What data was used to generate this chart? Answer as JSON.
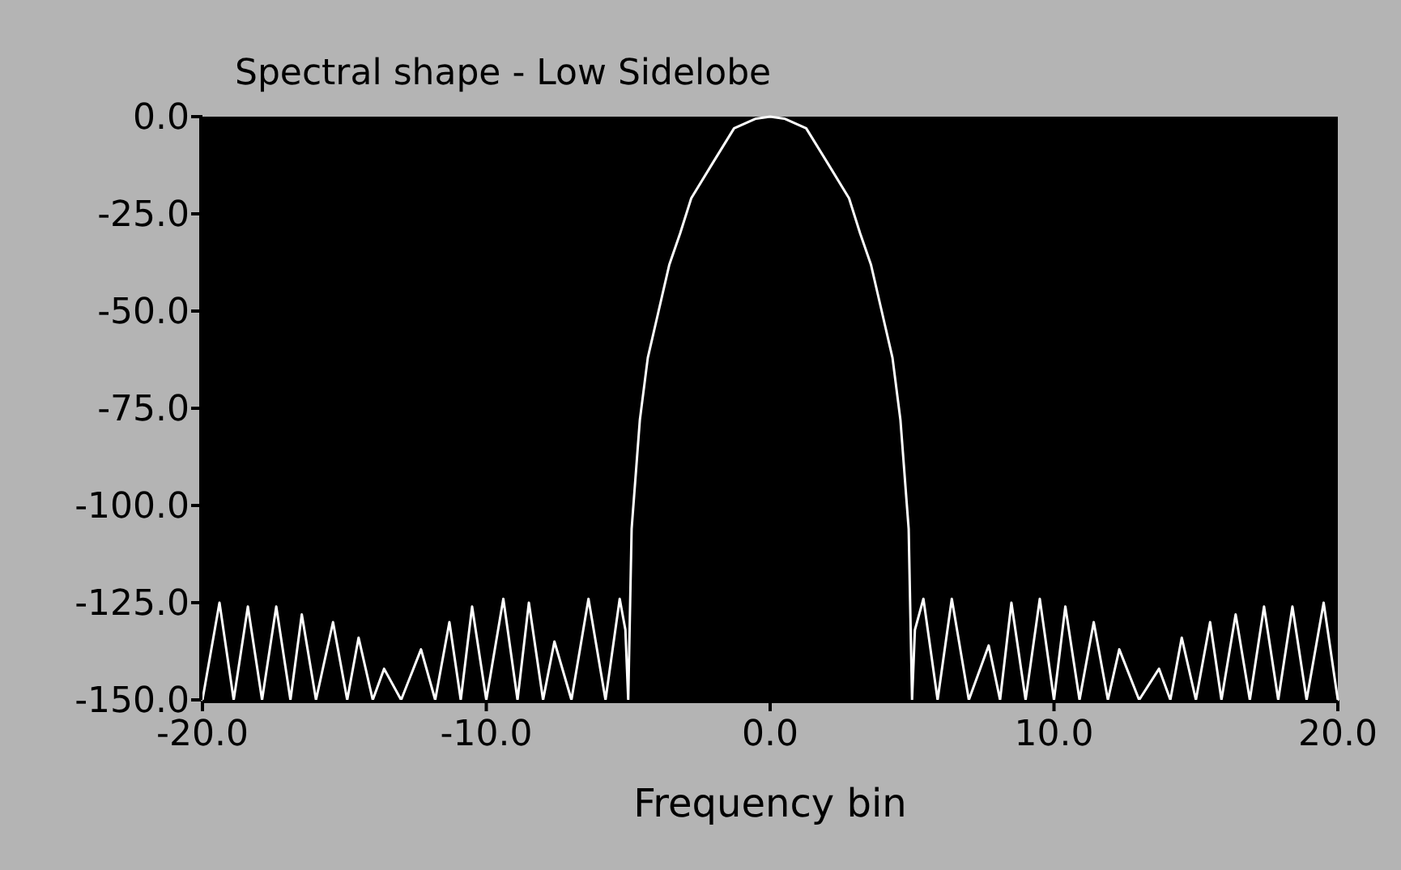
{
  "chart_data": {
    "type": "line",
    "title": "Spectral shape - Low Sidelobe",
    "xlabel": "Frequency bin",
    "xlim": [
      -20,
      20
    ],
    "xticks": [
      {
        "value": -20,
        "label": "-20.0"
      },
      {
        "value": -10,
        "label": "-10.0"
      },
      {
        "value": 0,
        "label": "0.0"
      },
      {
        "value": 10,
        "label": "10.0"
      },
      {
        "value": 20,
        "label": "20.0"
      }
    ],
    "ylim": [
      -150,
      0
    ],
    "yticks": [
      {
        "value": 0,
        "label": "0.0"
      },
      {
        "value": -25,
        "label": "-25.0"
      },
      {
        "value": -50,
        "label": "-50.0"
      },
      {
        "value": -75,
        "label": "-75.0"
      },
      {
        "value": -100,
        "label": "-100.0"
      },
      {
        "value": -125,
        "label": "-125.0"
      },
      {
        "value": -150,
        "label": "-150.0"
      }
    ],
    "marker": "none",
    "line_style": "solid",
    "series": [
      {
        "color": "#ffffff",
        "x": [
          -20,
          -19.4,
          -18.9,
          -18.4,
          -17.9,
          -17.4,
          -16.9,
          -16.5,
          -16,
          -15.4,
          -14.9,
          -14.5,
          -14,
          -13.6,
          -13,
          -12.3,
          -11.8,
          -11.3,
          -10.9,
          -10.5,
          -10,
          -9.4,
          -8.9,
          -8.5,
          -8,
          -7.6,
          -7,
          -6.4,
          -5.8,
          -5.3,
          -5.1,
          -5,
          -4.88,
          -4.59,
          -4.31,
          -3.93,
          -3.55,
          -3.17,
          -2.78,
          -2.03,
          -1.27,
          -0.5,
          0,
          0.5,
          1.27,
          2.03,
          2.78,
          3.17,
          3.55,
          3.93,
          4.31,
          4.59,
          4.88,
          5,
          5.1,
          5.4,
          5.9,
          6.4,
          7,
          7.7,
          8.1,
          8.5,
          9,
          9.5,
          10,
          10.4,
          10.9,
          11.4,
          11.9,
          12.3,
          13,
          13.7,
          14.1,
          14.5,
          15,
          15.5,
          15.9,
          16.4,
          16.9,
          17.4,
          17.9,
          18.4,
          18.9,
          19.5,
          20
        ],
        "values": [
          -150,
          -125,
          -150,
          -126,
          -150,
          -126,
          -150,
          -128,
          -150,
          -130,
          -150,
          -134,
          -150,
          -142,
          -150,
          -137,
          -150,
          -130,
          -150,
          -126,
          -150,
          -124,
          -150,
          -125,
          -150,
          -135,
          -150,
          -124,
          -150,
          -124,
          -132,
          -150,
          -106,
          -78,
          -62,
          -50,
          -38,
          -30,
          -21,
          -12,
          -3,
          -0.5,
          0,
          -0.5,
          -3,
          -12,
          -21,
          -30,
          -38,
          -50,
          -62,
          -78,
          -106,
          -150,
          -132,
          -124,
          -150,
          -124,
          -150,
          -136,
          -150,
          -125,
          -150,
          -124,
          -150,
          -126,
          -150,
          -130,
          -150,
          -137,
          -150,
          -142,
          -150,
          -134,
          -150,
          -130,
          -150,
          -128,
          -150,
          -126,
          -150,
          -126,
          -150,
          -125,
          -150
        ]
      }
    ]
  }
}
